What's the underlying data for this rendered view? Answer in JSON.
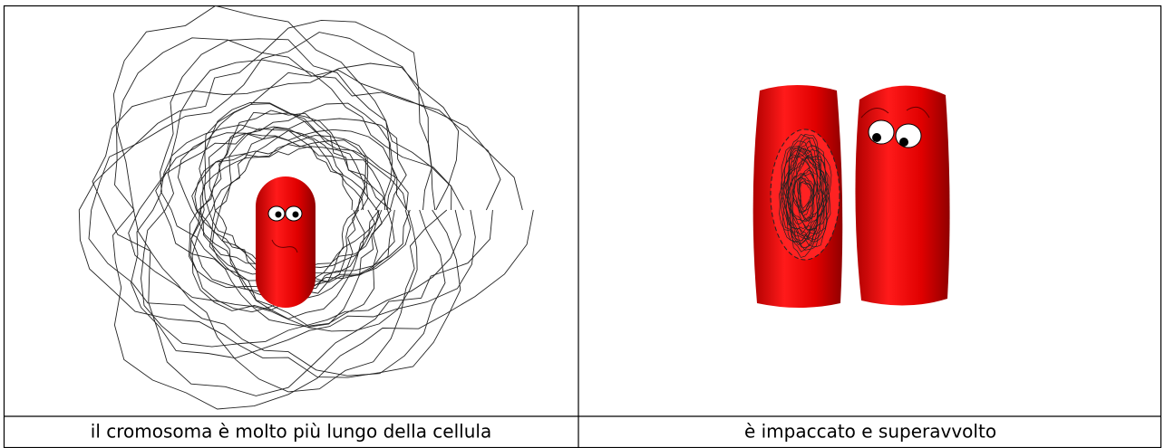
{
  "table": {
    "rows": [
      [
        "il cromosoma è molto più lungo della cellula",
        "è impaccato e superavvolto"
      ]
    ]
  }
}
